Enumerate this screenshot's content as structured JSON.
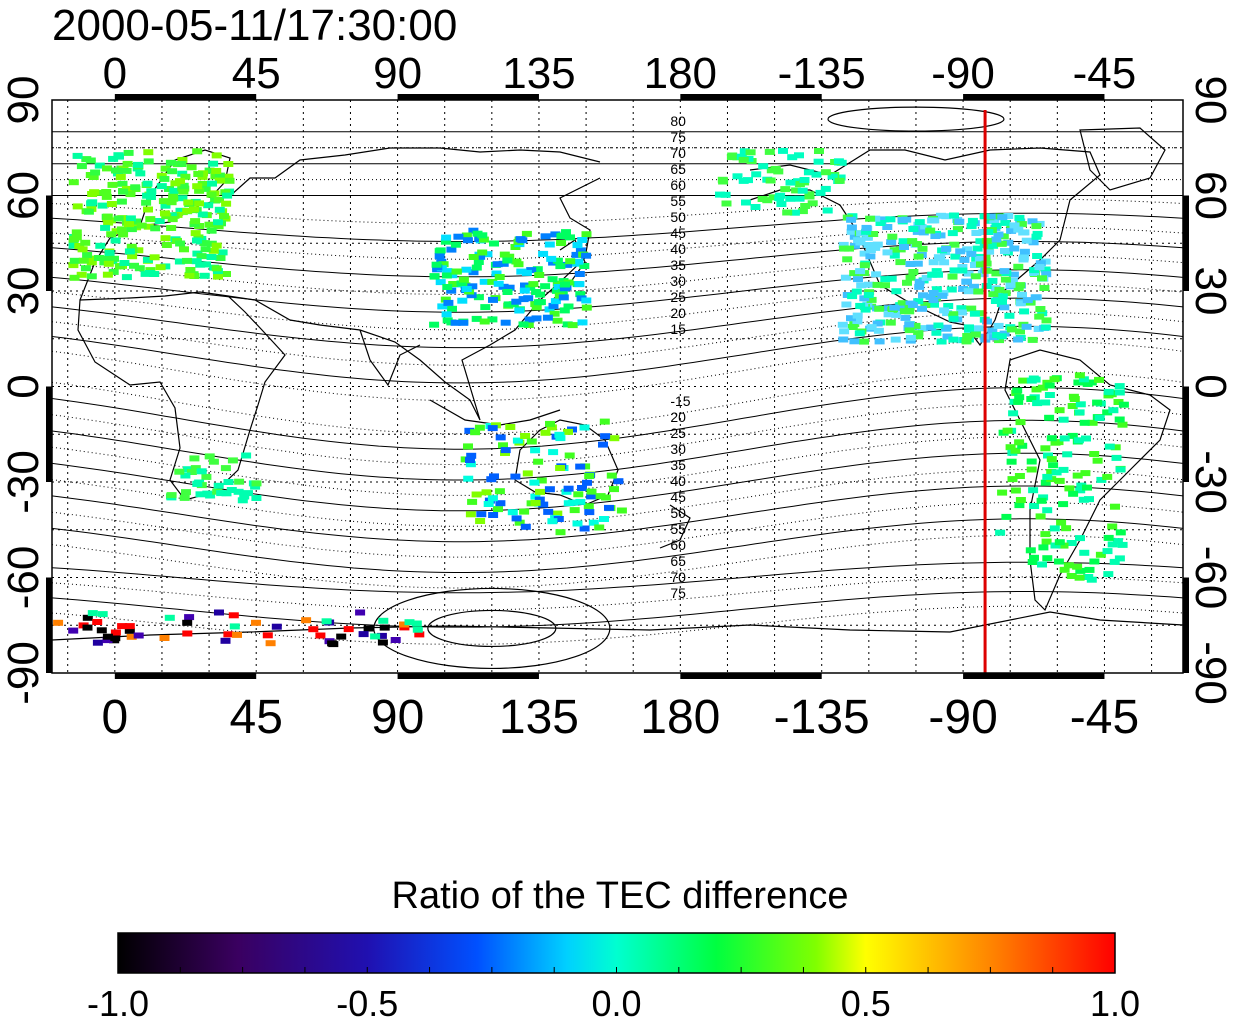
{
  "timestamp": "2000-05-11/17:30:00",
  "map": {
    "projection": "equirectangular",
    "lon_range": [
      -20,
      340
    ],
    "lat_range": [
      -90,
      90
    ],
    "top_lon_ticks": [
      "0",
      "45",
      "90",
      "135",
      "180",
      "-135",
      "-90",
      "-45"
    ],
    "bottom_lon_ticks": [
      "0",
      "45",
      "90",
      "135",
      "180",
      "-135",
      "-90",
      "-45"
    ],
    "left_lat_ticks": [
      "90",
      "60",
      "30",
      "0",
      "-30",
      "-60",
      "-90"
    ],
    "right_lat_ticks": [
      "90",
      "60",
      "30",
      "0",
      "-30",
      "-60",
      "-90"
    ],
    "grid": "dotted, every 15 degrees",
    "terminator_meridian_lon": -83,
    "terminator_color": "#dd0000",
    "north_contour_labels": [
      "80",
      "75",
      "70",
      "65",
      "60",
      "55",
      "50",
      "45",
      "40",
      "35",
      "30",
      "25",
      "20",
      "15"
    ],
    "south_contour_labels": [
      "-15",
      "20",
      "25",
      "30",
      "35",
      "40",
      "45",
      "50",
      "55",
      "60",
      "65",
      "70",
      "75"
    ]
  },
  "colorbar": {
    "title": "Ratio of the TEC difference",
    "ticks": [
      "-1.0",
      "-0.5",
      "0.0",
      "0.5",
      "1.0"
    ],
    "range": [
      -1.0,
      1.0
    ],
    "colormap": [
      "#000000",
      "#5a006e",
      "#0000ff",
      "#00ffff",
      "#00ff00",
      "#ffff00",
      "#ff8000",
      "#ff0000"
    ]
  }
}
